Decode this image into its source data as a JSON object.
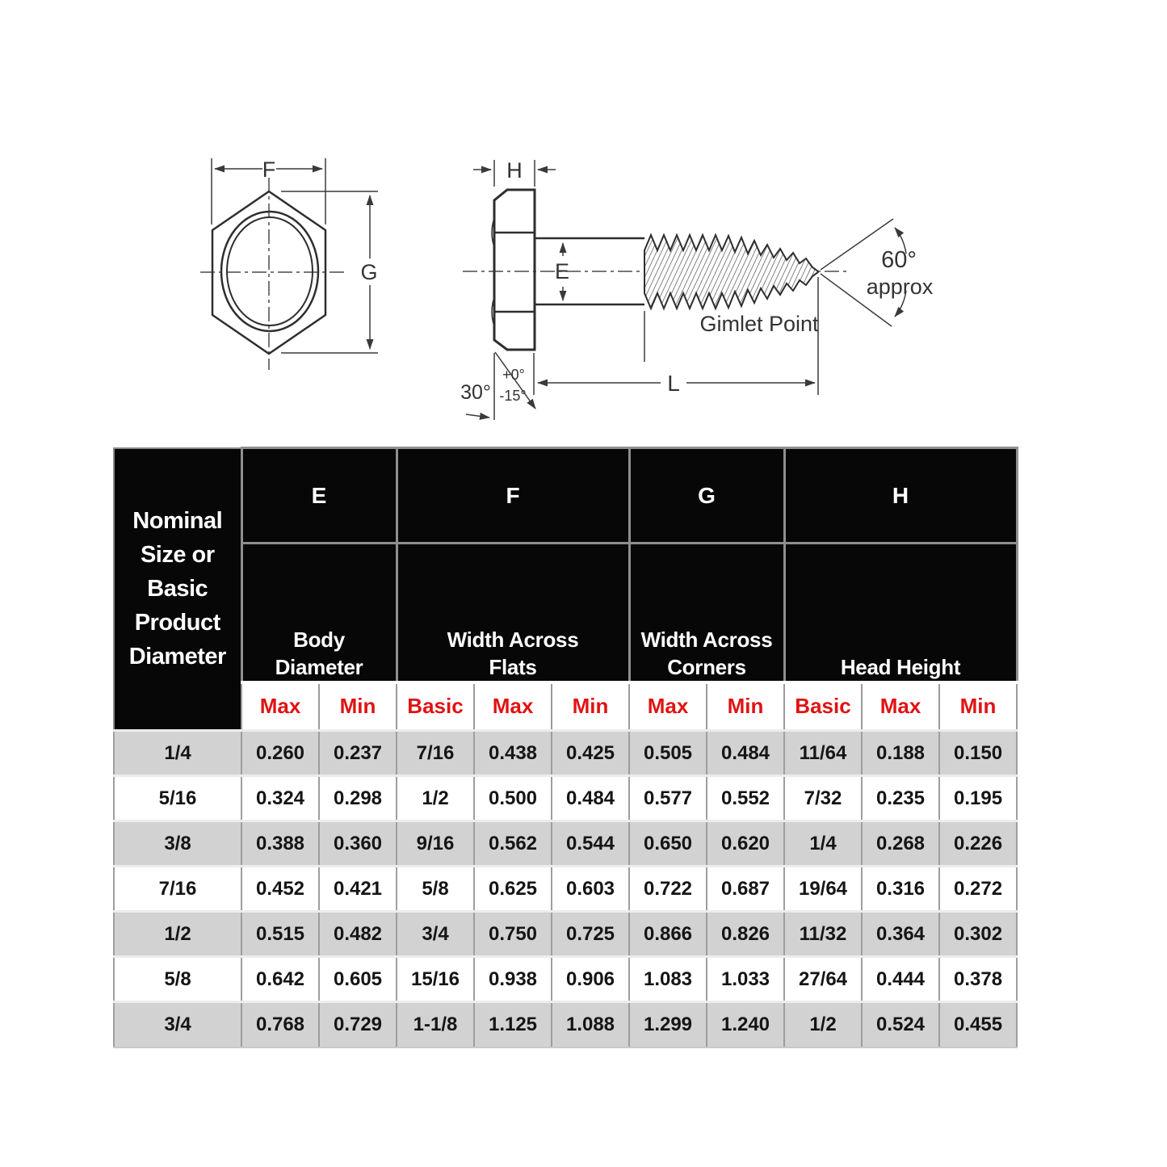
{
  "diagram": {
    "labels": {
      "f": "F",
      "g": "G",
      "h": "H",
      "e": "E",
      "l": "L",
      "angle30": "30°",
      "tol_plus": "+0°",
      "tol_minus": "-15°",
      "angle60": "60°",
      "approx": "approx",
      "gimlet_point": "Gimlet Point"
    }
  },
  "table": {
    "corner_header": "Nominal Size or Basic Product Diameter",
    "column_groups": [
      {
        "letter": "E",
        "name": "Body\nDiameter"
      },
      {
        "letter": "F",
        "name": "Width Across\nFlats"
      },
      {
        "letter": "G",
        "name": "Width Across\nCorners"
      },
      {
        "letter": "H",
        "name": "Head Height"
      }
    ],
    "subheaders": [
      "Max",
      "Min",
      "Basic",
      "Max",
      "Min",
      "Max",
      "Min",
      "Basic",
      "Max",
      "Min"
    ],
    "rows": [
      [
        "1/4",
        "0.260",
        "0.237",
        "7/16",
        "0.438",
        "0.425",
        "0.505",
        "0.484",
        "11/64",
        "0.188",
        "0.150"
      ],
      [
        "5/16",
        "0.324",
        "0.298",
        "1/2",
        "0.500",
        "0.484",
        "0.577",
        "0.552",
        "7/32",
        "0.235",
        "0.195"
      ],
      [
        "3/8",
        "0.388",
        "0.360",
        "9/16",
        "0.562",
        "0.544",
        "0.650",
        "0.620",
        "1/4",
        "0.268",
        "0.226"
      ],
      [
        "7/16",
        "0.452",
        "0.421",
        "5/8",
        "0.625",
        "0.603",
        "0.722",
        "0.687",
        "19/64",
        "0.316",
        "0.272"
      ],
      [
        "1/2",
        "0.515",
        "0.482",
        "3/4",
        "0.750",
        "0.725",
        "0.866",
        "0.826",
        "11/32",
        "0.364",
        "0.302"
      ],
      [
        "5/8",
        "0.642",
        "0.605",
        "15/16",
        "0.938",
        "0.906",
        "1.083",
        "1.033",
        "27/64",
        "0.444",
        "0.378"
      ],
      [
        "3/4",
        "0.768",
        "0.729",
        "1-1/8",
        "1.125",
        "1.088",
        "1.299",
        "1.240",
        "1/2",
        "0.524",
        "0.455"
      ]
    ],
    "colors": {
      "header_bg": "#070707",
      "header_text": "#ffffff",
      "subheader_text": "#e01313",
      "row_alt_bg": "#d2d2d2",
      "grid_line": "#9e9e9e"
    }
  }
}
